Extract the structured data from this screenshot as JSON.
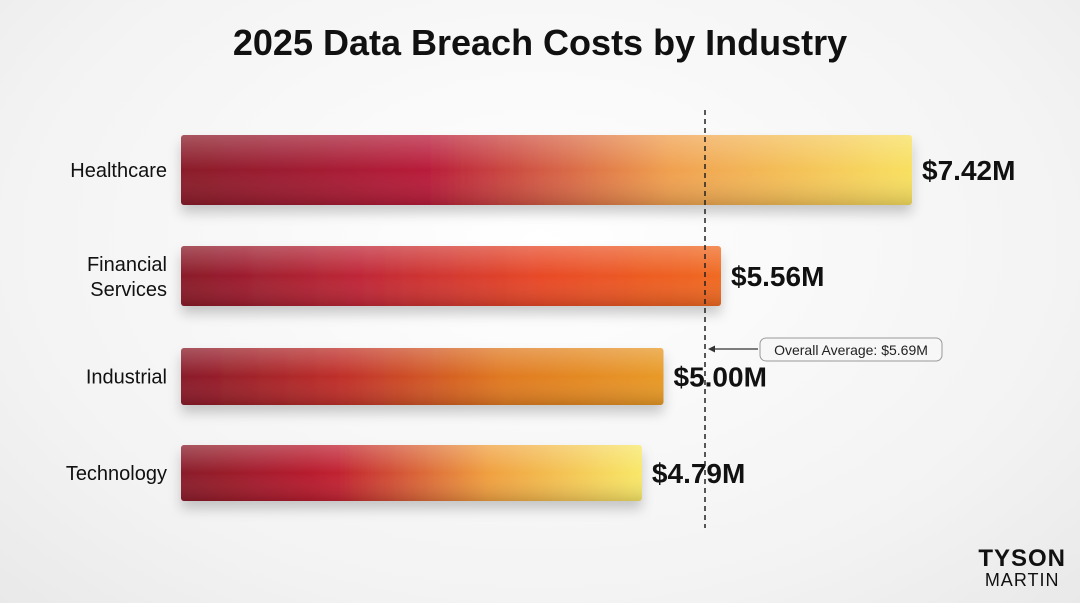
{
  "chart_data": {
    "type": "bar",
    "orientation": "horizontal",
    "title": "2025 Data Breach Costs by Industry",
    "categories": [
      "Healthcare",
      "Financial Services",
      "Industrial",
      "Technology"
    ],
    "values": [
      7.42,
      5.56,
      5.0,
      4.79
    ],
    "value_labels": [
      "$7.42M",
      "$5.56M",
      "$5.00M",
      "$4.79M"
    ],
    "unit": "$M",
    "reference_line": {
      "value": 5.69,
      "label": "Overall Average: $5.69M",
      "style": "dashed"
    },
    "bar_gradients": [
      [
        "#8a1a2a",
        "#b81c3a",
        "#f0a050",
        "#f8e060"
      ],
      [
        "#8a1a2a",
        "#c02838",
        "#e84a28",
        "#f06a20"
      ],
      [
        "#8a1a2a",
        "#c0302c",
        "#e07a20",
        "#e89a28"
      ],
      [
        "#8a1a2a",
        "#c02030",
        "#f0a040",
        "#f8e868"
      ]
    ],
    "grid": false,
    "legend": "none"
  },
  "logo": {
    "line1": "TYSON",
    "line2": "MARTIN"
  }
}
